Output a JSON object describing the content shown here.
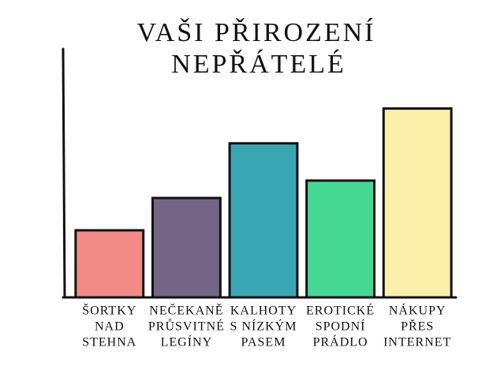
{
  "chart_data": {
    "type": "bar",
    "title": [
      "VAŠI PŘIROZENÍ",
      "NEPŘÁTELÉ"
    ],
    "categories": [
      [
        "ŠORTKY",
        "NAD",
        "STEHNA"
      ],
      [
        "NEČEKANĚ",
        "PRŮSVITNÉ",
        "LEGÍNY"
      ],
      [
        "KALHOTY",
        "S NÍZKÝM",
        "PASEM"
      ],
      [
        "EROTICKÉ",
        "SPODNÍ",
        "PRÁDLO"
      ],
      [
        "NÁKUPY",
        "PŘES",
        "INTERNET"
      ]
    ],
    "values": [
      27,
      40,
      62,
      47,
      76
    ],
    "colors": [
      "#f28b85",
      "#736685",
      "#3aa6b3",
      "#45d895",
      "#fbefaa"
    ],
    "ylim": [
      0,
      100
    ]
  }
}
